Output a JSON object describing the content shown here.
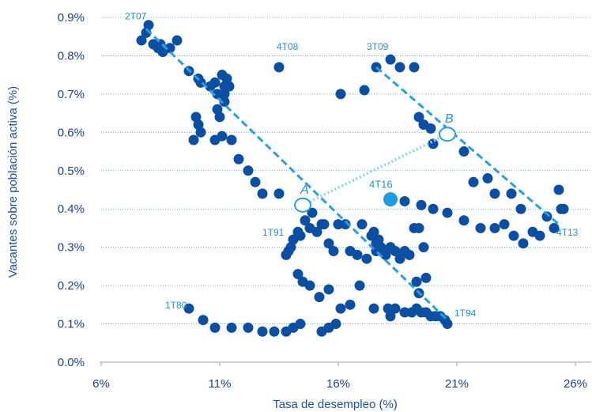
{
  "chart_data": {
    "type": "scatter",
    "title": "",
    "xlabel": "Tasa de desempleo (%)",
    "ylabel": "Vacantes sobre población activa (%)",
    "xlim": [
      6,
      26.5
    ],
    "ylim": [
      0,
      0.9
    ],
    "xticks": [
      6,
      11,
      16,
      21,
      26
    ],
    "xtick_labels": [
      "6%",
      "11%",
      "16%",
      "21%",
      "26%"
    ],
    "yticks": [
      0,
      0.1,
      0.2,
      0.3,
      0.4,
      0.5,
      0.6,
      0.7,
      0.8,
      0.9
    ],
    "ytick_labels": [
      "0.0%",
      "0.1%",
      "0.2%",
      "0.3%",
      "0.4%",
      "0.5%",
      "0.6%",
      "0.7%",
      "0.8%",
      "0.9%"
    ],
    "grid": "horizontal dotted",
    "colors": {
      "points": "#0b4ea2",
      "highlight": "#1f9ade",
      "trend": "#2a9ee0",
      "shift": "#8fd0ee",
      "axis_text": "#1f3f8f"
    },
    "points": [
      [
        7.7,
        0.84
      ],
      [
        7.9,
        0.86
      ],
      [
        8.0,
        0.88
      ],
      [
        8.2,
        0.83
      ],
      [
        8.4,
        0.82
      ],
      [
        8.5,
        0.83
      ],
      [
        8.6,
        0.81
      ],
      [
        8.9,
        0.82
      ],
      [
        9.2,
        0.84
      ],
      [
        9.7,
        0.76
      ],
      [
        10.1,
        0.74
      ],
      [
        10.2,
        0.73
      ],
      [
        9.9,
        0.58
      ],
      [
        10.0,
        0.64
      ],
      [
        10.1,
        0.62
      ],
      [
        10.2,
        0.6
      ],
      [
        10.6,
        0.72
      ],
      [
        10.8,
        0.73
      ],
      [
        10.9,
        0.7
      ],
      [
        10.9,
        0.66
      ],
      [
        11.0,
        0.64
      ],
      [
        10.8,
        0.58
      ],
      [
        11.1,
        0.59
      ],
      [
        11.1,
        0.75
      ],
      [
        11.2,
        0.72
      ],
      [
        11.2,
        0.68
      ],
      [
        11.3,
        0.74
      ],
      [
        11.4,
        0.72
      ],
      [
        11.2,
        0.7
      ],
      [
        11.5,
        0.58
      ],
      [
        11.8,
        0.53
      ],
      [
        12.2,
        0.5
      ],
      [
        12.5,
        0.47
      ],
      [
        12.8,
        0.44
      ],
      [
        13.5,
        0.44
      ],
      [
        13.8,
        0.28
      ],
      [
        13.9,
        0.29
      ],
      [
        14.0,
        0.3
      ],
      [
        14.1,
        0.32
      ],
      [
        14.3,
        0.34
      ],
      [
        14.4,
        0.33
      ],
      [
        14.6,
        0.37
      ],
      [
        14.8,
        0.35
      ],
      [
        14.9,
        0.39
      ],
      [
        15.1,
        0.34
      ],
      [
        15.3,
        0.36
      ],
      [
        15.4,
        0.36
      ],
      [
        15.6,
        0.31
      ],
      [
        15.8,
        0.29
      ],
      [
        16.0,
        0.36
      ],
      [
        16.3,
        0.36
      ],
      [
        16.5,
        0.29
      ],
      [
        16.8,
        0.28
      ],
      [
        17.0,
        0.36
      ],
      [
        17.2,
        0.27
      ],
      [
        17.4,
        0.33
      ],
      [
        17.5,
        0.34
      ],
      [
        17.6,
        0.31
      ],
      [
        17.7,
        0.32
      ],
      [
        17.8,
        0.3
      ],
      [
        18.0,
        0.28
      ],
      [
        18.2,
        0.3
      ],
      [
        18.4,
        0.29
      ],
      [
        18.6,
        0.27
      ],
      [
        18.8,
        0.29
      ],
      [
        19.0,
        0.28
      ],
      [
        19.2,
        0.35
      ],
      [
        19.4,
        0.35
      ],
      [
        19.6,
        0.3
      ],
      [
        17.6,
        0.29
      ],
      [
        14.3,
        0.23
      ],
      [
        14.5,
        0.21
      ],
      [
        14.8,
        0.2
      ],
      [
        15.2,
        0.17
      ],
      [
        15.6,
        0.19
      ],
      [
        16.1,
        0.14
      ],
      [
        16.5,
        0.15
      ],
      [
        16.9,
        0.2
      ],
      [
        17.5,
        0.14
      ],
      [
        18.1,
        0.14
      ],
      [
        18.4,
        0.14
      ],
      [
        18.8,
        0.13
      ],
      [
        19.1,
        0.13
      ],
      [
        19.3,
        0.14
      ],
      [
        19.5,
        0.13
      ],
      [
        19.7,
        0.13
      ],
      [
        19.9,
        0.12
      ],
      [
        20.1,
        0.12
      ],
      [
        20.3,
        0.12
      ],
      [
        20.5,
        0.11
      ],
      [
        20.6,
        0.1
      ],
      [
        19.3,
        0.21
      ],
      [
        19.7,
        0.22
      ],
      [
        19.4,
        0.18
      ],
      [
        15.9,
        0.1
      ],
      [
        15.6,
        0.09
      ],
      [
        15.3,
        0.08
      ],
      [
        14.4,
        0.1
      ],
      [
        14.1,
        0.09
      ],
      [
        13.8,
        0.08
      ],
      [
        13.3,
        0.08
      ],
      [
        12.8,
        0.08
      ],
      [
        12.2,
        0.09
      ],
      [
        11.5,
        0.09
      ],
      [
        10.8,
        0.09
      ],
      [
        10.3,
        0.11
      ],
      [
        9.7,
        0.14
      ],
      [
        18.2,
        0.12
      ],
      [
        13.5,
        0.77
      ],
      [
        16.1,
        0.7
      ],
      [
        17.1,
        0.71
      ],
      [
        17.6,
        0.77
      ],
      [
        18.2,
        0.79
      ],
      [
        18.6,
        0.77
      ],
      [
        19.2,
        0.77
      ],
      [
        19.4,
        0.64
      ],
      [
        19.6,
        0.62
      ],
      [
        19.9,
        0.61
      ],
      [
        20.0,
        0.57
      ],
      [
        21.3,
        0.55
      ],
      [
        21.7,
        0.47
      ],
      [
        22.3,
        0.48
      ],
      [
        22.6,
        0.44
      ],
      [
        23.3,
        0.44
      ],
      [
        23.7,
        0.4
      ],
      [
        24.2,
        0.34
      ],
      [
        24.5,
        0.33
      ],
      [
        24.8,
        0.38
      ],
      [
        25.1,
        0.35
      ],
      [
        25.3,
        0.45
      ],
      [
        25.4,
        0.4
      ],
      [
        25.5,
        0.4
      ],
      [
        18.8,
        0.42
      ],
      [
        19.5,
        0.41
      ],
      [
        20.0,
        0.4
      ],
      [
        20.6,
        0.39
      ],
      [
        21.3,
        0.37
      ],
      [
        22.0,
        0.35
      ],
      [
        22.6,
        0.35
      ],
      [
        23.0,
        0.36
      ],
      [
        23.4,
        0.33
      ],
      [
        23.8,
        0.31
      ]
    ],
    "highlight_point": {
      "label": "4T16",
      "x": 18.2,
      "y": 0.425
    },
    "trend_lines": [
      {
        "from": [
          7.9,
          0.87
        ],
        "to": [
          20.6,
          0.11
        ]
      },
      {
        "from": [
          17.6,
          0.77
        ],
        "to": [
          25.3,
          0.36
        ]
      }
    ],
    "shift_line": {
      "from": [
        14.5,
        0.41
      ],
      "to": [
        20.6,
        0.595
      ]
    },
    "open_markers": [
      {
        "label": "A",
        "x": 14.5,
        "y": 0.41
      },
      {
        "label": "B",
        "x": 20.6,
        "y": 0.595
      }
    ],
    "annotations": [
      {
        "text": "2T07",
        "x": 7.0,
        "y": 0.895
      },
      {
        "text": "4T08",
        "x": 13.4,
        "y": 0.815
      },
      {
        "text": "3T09",
        "x": 17.2,
        "y": 0.815
      },
      {
        "text": "4T16",
        "x": 17.3,
        "y": 0.455
      },
      {
        "text": "1T91",
        "x": 12.8,
        "y": 0.33
      },
      {
        "text": "1T80",
        "x": 8.7,
        "y": 0.14
      },
      {
        "text": "1T94",
        "x": 20.9,
        "y": 0.12
      },
      {
        "text": "4T13",
        "x": 25.2,
        "y": 0.33
      },
      {
        "text": "A",
        "x": 14.4,
        "y": 0.44
      },
      {
        "text": "B",
        "x": 20.5,
        "y": 0.625
      }
    ]
  }
}
